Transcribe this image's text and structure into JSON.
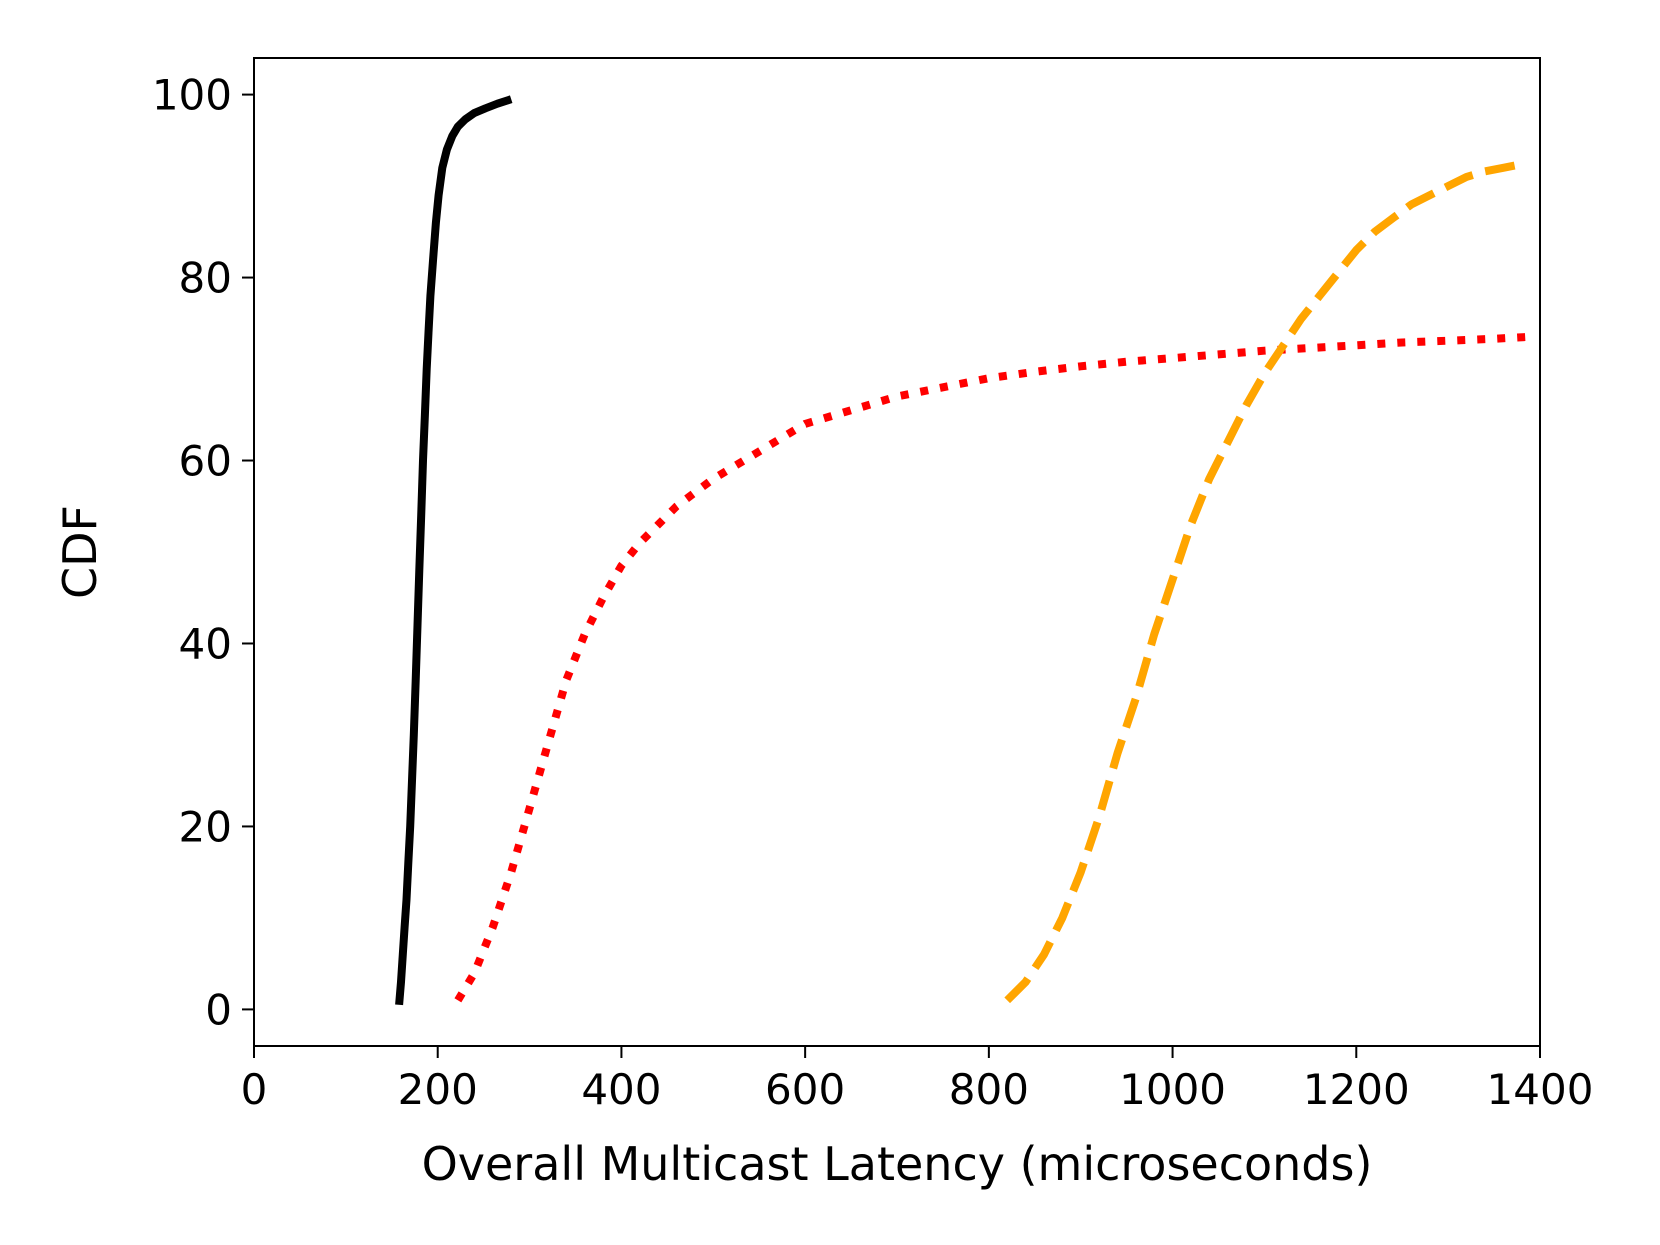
{
  "chart_data": {
    "type": "line",
    "title": "",
    "xlabel": "Overall Multicast Latency (microseconds)",
    "ylabel": "CDF",
    "xlim": [
      0,
      1400
    ],
    "ylim": [
      -4,
      104
    ],
    "xticks": [
      0,
      200,
      400,
      600,
      800,
      1000,
      1200,
      1400
    ],
    "yticks": [
      0,
      20,
      40,
      60,
      80,
      100
    ],
    "grid": false,
    "legend": "none",
    "series": [
      {
        "name": "series-black-solid",
        "color": "#000000",
        "style": "solid",
        "x": [
          158,
          160,
          162,
          164,
          166,
          168,
          170,
          172,
          174,
          176,
          178,
          180,
          182,
          184,
          186,
          188,
          190,
          192,
          195,
          198,
          201,
          205,
          210,
          216,
          222,
          230,
          240,
          252,
          265,
          280
        ],
        "y": [
          0.5,
          3,
          6,
          9,
          12,
          16,
          20,
          25,
          30,
          36,
          42,
          48,
          54,
          60,
          65,
          70,
          74,
          78,
          82,
          86,
          89,
          92,
          94,
          95.5,
          96.5,
          97.3,
          98,
          98.5,
          99,
          99.5
        ]
      },
      {
        "name": "series-red-dotted",
        "color": "#ff0000",
        "style": "dotted",
        "x": [
          222,
          240,
          260,
          280,
          300,
          320,
          340,
          360,
          380,
          400,
          420,
          440,
          460,
          480,
          500,
          525,
          550,
          575,
          600,
          650,
          700,
          750,
          800,
          850,
          900,
          950,
          1000,
          1050,
          1100,
          1150,
          1200,
          1250,
          1300,
          1350,
          1385
        ],
        "y": [
          1,
          4,
          9,
          15,
          22,
          29,
          36,
          41,
          45,
          48.5,
          51,
          53,
          55,
          56.5,
          58,
          59.5,
          61,
          62.5,
          64,
          65.5,
          67,
          68,
          69,
          69.7,
          70.3,
          70.8,
          71.2,
          71.6,
          72,
          72.3,
          72.6,
          72.9,
          73.1,
          73.3,
          73.5
        ]
      },
      {
        "name": "series-orange-dashed",
        "color": "#ffa500",
        "style": "dashed",
        "x": [
          820,
          840,
          860,
          880,
          900,
          920,
          940,
          960,
          980,
          1000,
          1020,
          1040,
          1060,
          1080,
          1100,
          1120,
          1140,
          1160,
          1180,
          1200,
          1220,
          1240,
          1260,
          1280,
          1300,
          1320,
          1340,
          1360,
          1385
        ],
        "y": [
          1,
          3,
          6,
          10,
          15,
          21,
          28,
          34,
          41,
          47,
          53,
          58,
          62,
          66,
          69.5,
          72.5,
          75.5,
          78,
          80.5,
          83,
          85,
          86.5,
          88,
          89,
          90,
          91,
          91.6,
          92,
          92.5
        ]
      }
    ]
  }
}
